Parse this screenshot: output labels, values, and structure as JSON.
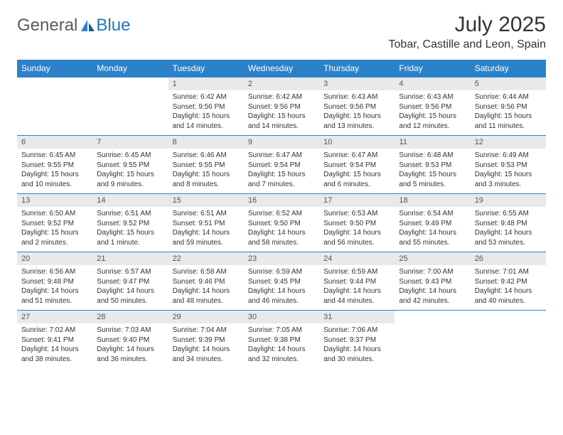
{
  "brand": {
    "general": "General",
    "blue": "Blue"
  },
  "title": "July 2025",
  "location": "Tobar, Castille and Leon, Spain",
  "colors": {
    "header_bg": "#2c82c9",
    "header_text": "#ffffff",
    "daynum_bg": "#e9e9e9",
    "border": "#2c82c9",
    "text": "#333333",
    "logo_gray": "#5a5a5a",
    "logo_blue": "#2176b8",
    "background": "#ffffff"
  },
  "typography": {
    "title_fontsize": 30,
    "location_fontsize": 16,
    "header_fontsize": 12,
    "cell_fontsize": 10,
    "daynum_fontsize": 11
  },
  "dayNames": [
    "Sunday",
    "Monday",
    "Tuesday",
    "Wednesday",
    "Thursday",
    "Friday",
    "Saturday"
  ],
  "weeks": [
    [
      null,
      null,
      {
        "n": "1",
        "sunrise": "6:42 AM",
        "sunset": "9:56 PM",
        "daylight": "15 hours and 14 minutes."
      },
      {
        "n": "2",
        "sunrise": "6:42 AM",
        "sunset": "9:56 PM",
        "daylight": "15 hours and 14 minutes."
      },
      {
        "n": "3",
        "sunrise": "6:43 AM",
        "sunset": "9:56 PM",
        "daylight": "15 hours and 13 minutes."
      },
      {
        "n": "4",
        "sunrise": "6:43 AM",
        "sunset": "9:56 PM",
        "daylight": "15 hours and 12 minutes."
      },
      {
        "n": "5",
        "sunrise": "6:44 AM",
        "sunset": "9:56 PM",
        "daylight": "15 hours and 11 minutes."
      }
    ],
    [
      {
        "n": "6",
        "sunrise": "6:45 AM",
        "sunset": "9:55 PM",
        "daylight": "15 hours and 10 minutes."
      },
      {
        "n": "7",
        "sunrise": "6:45 AM",
        "sunset": "9:55 PM",
        "daylight": "15 hours and 9 minutes."
      },
      {
        "n": "8",
        "sunrise": "6:46 AM",
        "sunset": "9:55 PM",
        "daylight": "15 hours and 8 minutes."
      },
      {
        "n": "9",
        "sunrise": "6:47 AM",
        "sunset": "9:54 PM",
        "daylight": "15 hours and 7 minutes."
      },
      {
        "n": "10",
        "sunrise": "6:47 AM",
        "sunset": "9:54 PM",
        "daylight": "15 hours and 6 minutes."
      },
      {
        "n": "11",
        "sunrise": "6:48 AM",
        "sunset": "9:53 PM",
        "daylight": "15 hours and 5 minutes."
      },
      {
        "n": "12",
        "sunrise": "6:49 AM",
        "sunset": "9:53 PM",
        "daylight": "15 hours and 3 minutes."
      }
    ],
    [
      {
        "n": "13",
        "sunrise": "6:50 AM",
        "sunset": "9:52 PM",
        "daylight": "15 hours and 2 minutes."
      },
      {
        "n": "14",
        "sunrise": "6:51 AM",
        "sunset": "9:52 PM",
        "daylight": "15 hours and 1 minute."
      },
      {
        "n": "15",
        "sunrise": "6:51 AM",
        "sunset": "9:51 PM",
        "daylight": "14 hours and 59 minutes."
      },
      {
        "n": "16",
        "sunrise": "6:52 AM",
        "sunset": "9:50 PM",
        "daylight": "14 hours and 58 minutes."
      },
      {
        "n": "17",
        "sunrise": "6:53 AM",
        "sunset": "9:50 PM",
        "daylight": "14 hours and 56 minutes."
      },
      {
        "n": "18",
        "sunrise": "6:54 AM",
        "sunset": "9:49 PM",
        "daylight": "14 hours and 55 minutes."
      },
      {
        "n": "19",
        "sunrise": "6:55 AM",
        "sunset": "9:48 PM",
        "daylight": "14 hours and 53 minutes."
      }
    ],
    [
      {
        "n": "20",
        "sunrise": "6:56 AM",
        "sunset": "9:48 PM",
        "daylight": "14 hours and 51 minutes."
      },
      {
        "n": "21",
        "sunrise": "6:57 AM",
        "sunset": "9:47 PM",
        "daylight": "14 hours and 50 minutes."
      },
      {
        "n": "22",
        "sunrise": "6:58 AM",
        "sunset": "9:46 PM",
        "daylight": "14 hours and 48 minutes."
      },
      {
        "n": "23",
        "sunrise": "6:59 AM",
        "sunset": "9:45 PM",
        "daylight": "14 hours and 46 minutes."
      },
      {
        "n": "24",
        "sunrise": "6:59 AM",
        "sunset": "9:44 PM",
        "daylight": "14 hours and 44 minutes."
      },
      {
        "n": "25",
        "sunrise": "7:00 AM",
        "sunset": "9:43 PM",
        "daylight": "14 hours and 42 minutes."
      },
      {
        "n": "26",
        "sunrise": "7:01 AM",
        "sunset": "9:42 PM",
        "daylight": "14 hours and 40 minutes."
      }
    ],
    [
      {
        "n": "27",
        "sunrise": "7:02 AM",
        "sunset": "9:41 PM",
        "daylight": "14 hours and 38 minutes."
      },
      {
        "n": "28",
        "sunrise": "7:03 AM",
        "sunset": "9:40 PM",
        "daylight": "14 hours and 36 minutes."
      },
      {
        "n": "29",
        "sunrise": "7:04 AM",
        "sunset": "9:39 PM",
        "daylight": "14 hours and 34 minutes."
      },
      {
        "n": "30",
        "sunrise": "7:05 AM",
        "sunset": "9:38 PM",
        "daylight": "14 hours and 32 minutes."
      },
      {
        "n": "31",
        "sunrise": "7:06 AM",
        "sunset": "9:37 PM",
        "daylight": "14 hours and 30 minutes."
      },
      null,
      null
    ]
  ],
  "labels": {
    "sunrise": "Sunrise:",
    "sunset": "Sunset:",
    "daylight": "Daylight:"
  }
}
